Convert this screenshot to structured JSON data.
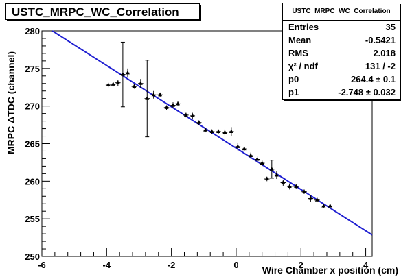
{
  "chart_data": {
    "type": "scatter",
    "title": "USTC_MRPC_WC_Correlation",
    "xlabel": "Wire Chamber x position (cm)",
    "ylabel": "MRPC ΔTDC (channel)",
    "xlim": [
      -6,
      4.2
    ],
    "ylim": [
      250,
      280
    ],
    "x_ticks": [
      "-6",
      "-4",
      "-2",
      "0",
      "2",
      "4"
    ],
    "y_ticks": [
      "250",
      "255",
      "260",
      "265",
      "270",
      "275",
      "280"
    ],
    "fit_line": {
      "p0": 264.4,
      "p1": -2.748,
      "color": "#1f1fd1"
    },
    "points": [
      {
        "x": -3.95,
        "y": 272.8,
        "ex": 0.08,
        "ey": 0.3
      },
      {
        "x": -3.8,
        "y": 272.9,
        "ex": 0.08,
        "ey": 0.3
      },
      {
        "x": -3.65,
        "y": 273.1,
        "ex": 0.08,
        "ey": 0.4
      },
      {
        "x": -3.5,
        "y": 274.2,
        "ex": 0.08,
        "ey": 4.3
      },
      {
        "x": -3.35,
        "y": 274.4,
        "ex": 0.08,
        "ey": 0.6
      },
      {
        "x": -3.15,
        "y": 272.6,
        "ex": 0.08,
        "ey": 0.3
      },
      {
        "x": -2.95,
        "y": 273.0,
        "ex": 0.08,
        "ey": 0.6
      },
      {
        "x": -2.75,
        "y": 271.0,
        "ex": 0.08,
        "ey": 5.1
      },
      {
        "x": -2.55,
        "y": 271.5,
        "ex": 0.08,
        "ey": 0.5
      },
      {
        "x": -2.35,
        "y": 271.5,
        "ex": 0.08,
        "ey": 0.3
      },
      {
        "x": -2.15,
        "y": 269.8,
        "ex": 0.08,
        "ey": 0.3
      },
      {
        "x": -1.95,
        "y": 270.1,
        "ex": 0.08,
        "ey": 0.4
      },
      {
        "x": -1.8,
        "y": 270.3,
        "ex": 0.08,
        "ey": 0.3
      },
      {
        "x": -1.55,
        "y": 268.8,
        "ex": 0.08,
        "ey": 0.3
      },
      {
        "x": -1.35,
        "y": 268.7,
        "ex": 0.08,
        "ey": 0.4
      },
      {
        "x": -1.15,
        "y": 267.8,
        "ex": 0.08,
        "ey": 0.3
      },
      {
        "x": -0.95,
        "y": 266.8,
        "ex": 0.08,
        "ey": 0.3
      },
      {
        "x": -0.75,
        "y": 266.6,
        "ex": 0.08,
        "ey": 0.3
      },
      {
        "x": -0.55,
        "y": 266.6,
        "ex": 0.08,
        "ey": 0.3
      },
      {
        "x": -0.35,
        "y": 266.5,
        "ex": 0.08,
        "ey": 0.4
      },
      {
        "x": -0.15,
        "y": 266.6,
        "ex": 0.08,
        "ey": 0.6
      },
      {
        "x": 0.05,
        "y": 264.6,
        "ex": 0.08,
        "ey": 0.5
      },
      {
        "x": 0.25,
        "y": 264.3,
        "ex": 0.08,
        "ey": 0.3
      },
      {
        "x": 0.45,
        "y": 263.4,
        "ex": 0.08,
        "ey": 0.4
      },
      {
        "x": 0.65,
        "y": 262.9,
        "ex": 0.08,
        "ey": 0.4
      },
      {
        "x": 0.8,
        "y": 262.4,
        "ex": 0.08,
        "ey": 0.4
      },
      {
        "x": 0.95,
        "y": 260.3,
        "ex": 0.08,
        "ey": 0.3
      },
      {
        "x": 1.1,
        "y": 261.6,
        "ex": 0.08,
        "ey": 1.2
      },
      {
        "x": 1.25,
        "y": 260.8,
        "ex": 0.08,
        "ey": 0.5
      },
      {
        "x": 1.45,
        "y": 259.8,
        "ex": 0.08,
        "ey": 0.4
      },
      {
        "x": 1.65,
        "y": 259.3,
        "ex": 0.08,
        "ey": 0.4
      },
      {
        "x": 1.85,
        "y": 259.3,
        "ex": 0.08,
        "ey": 0.3
      },
      {
        "x": 2.1,
        "y": 258.6,
        "ex": 0.08,
        "ey": 0.3
      },
      {
        "x": 2.3,
        "y": 257.7,
        "ex": 0.08,
        "ey": 0.4
      },
      {
        "x": 2.5,
        "y": 257.5,
        "ex": 0.08,
        "ey": 0.3
      },
      {
        "x": 2.7,
        "y": 256.7,
        "ex": 0.08,
        "ey": 0.3
      },
      {
        "x": 2.9,
        "y": 256.7,
        "ex": 0.08,
        "ey": 0.3
      }
    ],
    "stats": {
      "title": "USTC_MRPC_WC_Correlation",
      "rows": [
        {
          "label": "Entries",
          "value": "35"
        },
        {
          "label": "Mean",
          "value": "-0.5421"
        },
        {
          "label": "RMS",
          "value": "2.018"
        },
        {
          "label": "χ² / ndf",
          "value": "131 / -2"
        },
        {
          "label": "p0",
          "value": "264.4 ± 0.1"
        },
        {
          "label": "p1",
          "value": "-2.748 ± 0.032"
        }
      ]
    }
  }
}
